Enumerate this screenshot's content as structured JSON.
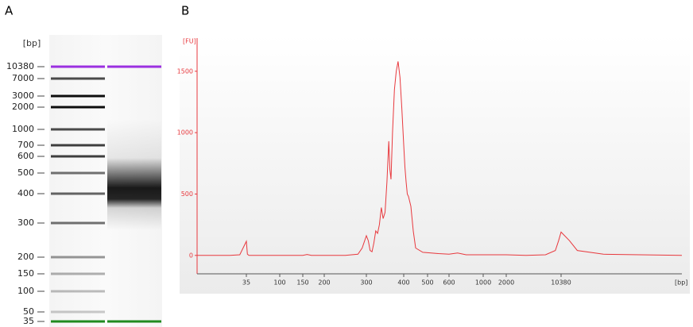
{
  "chart_data": [
    {
      "type": "gel",
      "panel": "A",
      "ylabel": "[bp]",
      "ladder": [
        10380,
        7000,
        3000,
        2000,
        1000,
        700,
        600,
        500,
        400,
        300,
        200,
        150,
        100,
        50,
        35
      ],
      "upper_marker_color": "#9b30e0",
      "lower_marker_color": "#1f8a1f"
    },
    {
      "type": "line",
      "panel": "B",
      "ylabel": "[FU]",
      "xlabel": "[bp]",
      "color": "#e8383d",
      "x": [
        20,
        30,
        33,
        35,
        37,
        40,
        100,
        150,
        160,
        170,
        200,
        250,
        280,
        290,
        300,
        305,
        310,
        315,
        320,
        325,
        330,
        335,
        340,
        345,
        350,
        355,
        360,
        363,
        366,
        370,
        375,
        380,
        385,
        390,
        395,
        400,
        405,
        410,
        415,
        420,
        430,
        440,
        450,
        480,
        550,
        600,
        700,
        800,
        1000,
        2000,
        5000,
        8000,
        9500,
        10000,
        10380,
        10700,
        11000,
        12000,
        15000
      ],
      "values": [
        0,
        0,
        5,
        115,
        10,
        0,
        0,
        0,
        8,
        0,
        0,
        0,
        10,
        60,
        160,
        120,
        40,
        30,
        100,
        200,
        180,
        250,
        390,
        300,
        350,
        600,
        930,
        700,
        620,
        1000,
        1350,
        1500,
        1580,
        1450,
        1200,
        900,
        720,
        600,
        500,
        480,
        400,
        200,
        60,
        25,
        15,
        10,
        20,
        5,
        5,
        5,
        0,
        5,
        40,
        120,
        190,
        120,
        40,
        10,
        0
      ],
      "xlim": [
        20,
        15000
      ],
      "xticks": [
        35,
        100,
        150,
        200,
        300,
        400,
        500,
        600,
        1000,
        2000,
        10380
      ],
      "ylim": [
        -150,
        1770
      ],
      "yticks": [
        0,
        500,
        1000,
        1500
      ]
    }
  ]
}
